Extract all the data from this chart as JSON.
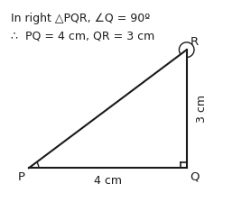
{
  "title_line1": "In right △PQR, ∠Q = 90º",
  "title_line2": "∴  PQ = 4 cm, QR = 3 cm",
  "P": [
    0.0,
    0.0
  ],
  "Q": [
    4.0,
    0.0
  ],
  "R": [
    4.0,
    3.0
  ],
  "label_P": "P",
  "label_Q": "Q",
  "label_R": "R",
  "side_PQ_label": "4 cm",
  "side_QR_label": "3 cm",
  "bg_color": "#ffffff",
  "line_color": "#1a1a1a",
  "text_color": "#1a1a1a",
  "title_fontsize": 9.0,
  "label_fontsize": 9.5,
  "side_label_fontsize": 9.0,
  "xlim": [
    -0.6,
    5.5
  ],
  "ylim": [
    -0.8,
    4.2
  ]
}
